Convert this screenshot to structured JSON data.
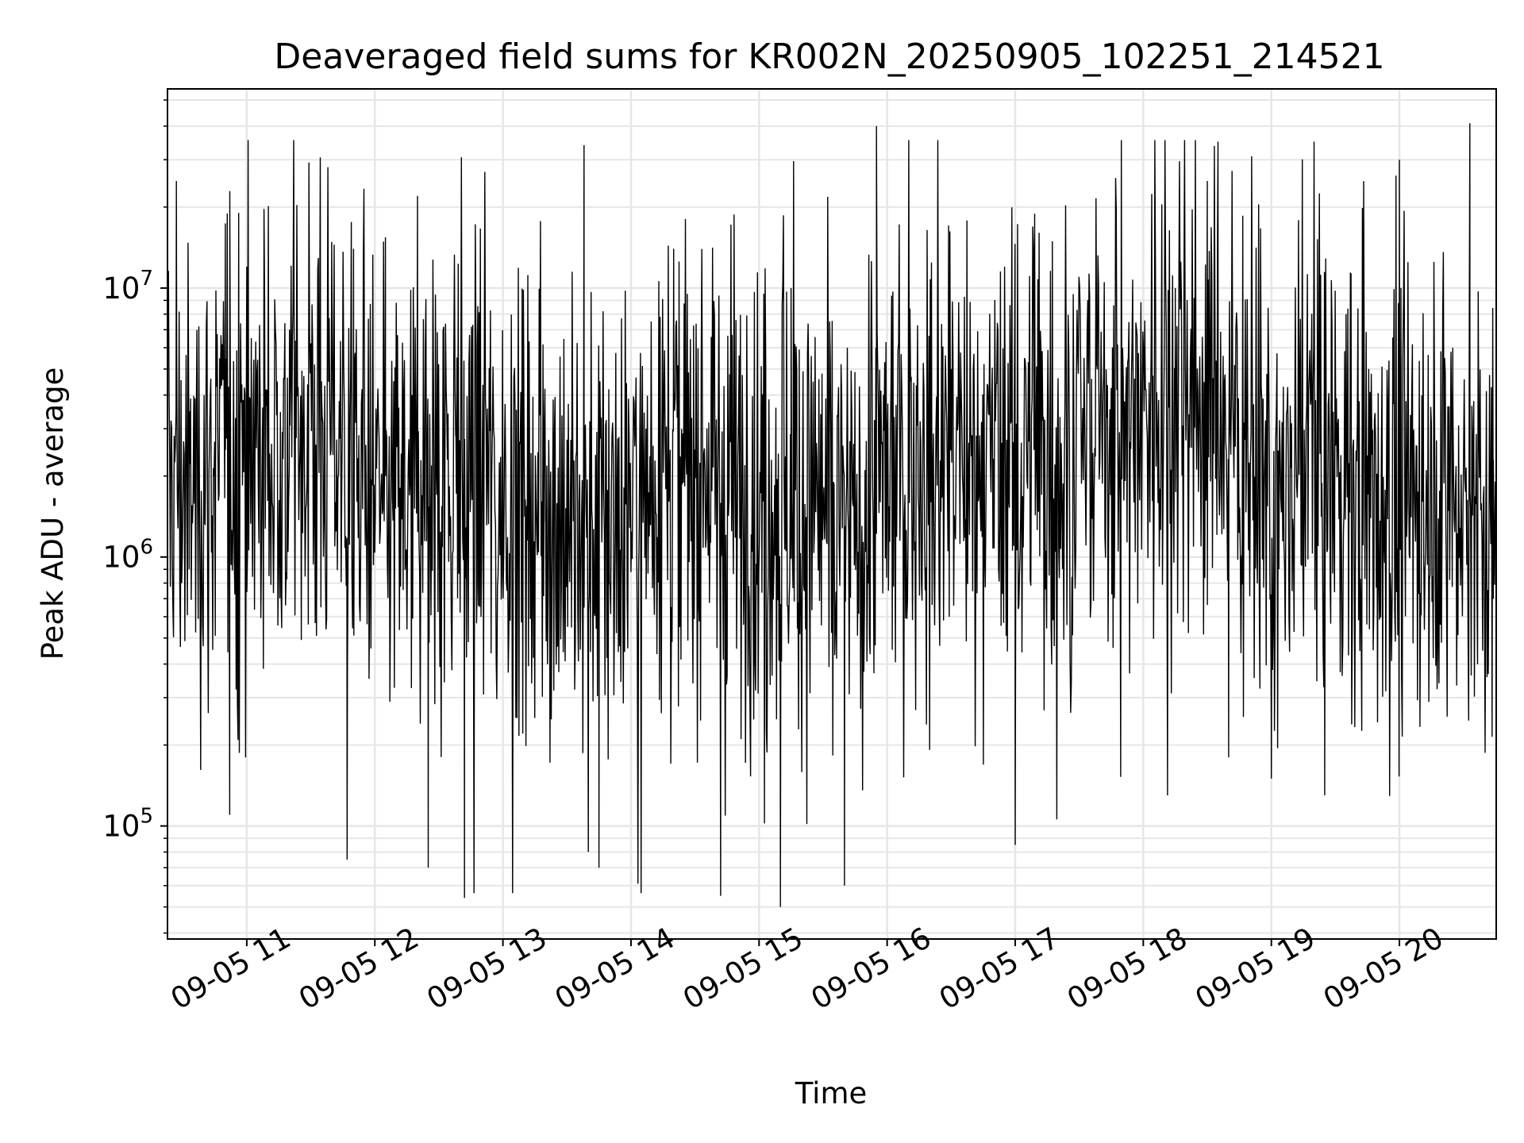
{
  "chart_data": {
    "type": "line",
    "title": "Deaveraged field sums for KR002N_20250905_102251_214521",
    "xlabel": "Time",
    "ylabel": "Peak ADU - average",
    "yscale": "log",
    "ylim": [
      38000,
      55000000
    ],
    "xlim": [
      "2025-09-05 10:22:51",
      "2025-09-05 20:45:21"
    ],
    "grid": true,
    "x_ticks": [
      "09-05 11",
      "09-05 12",
      "09-05 13",
      "09-05 14",
      "09-05 15",
      "09-05 16",
      "09-05 17",
      "09-05 18",
      "09-05 19",
      "09-05 20"
    ],
    "y_ticks": [
      {
        "value": 100000,
        "base": "10",
        "exp": "5"
      },
      {
        "value": 1000000,
        "base": "10",
        "exp": "6"
      },
      {
        "value": 10000000,
        "base": "10",
        "exp": "7"
      }
    ],
    "line_color": "#000000",
    "series": [
      {
        "x": [
          "2025-09-05 10:25",
          "2025-09-05 10:27",
          "2025-09-05 10:33",
          "2025-09-05 10:40",
          "2025-09-05 10:50",
          "2025-09-05 10:52",
          "2025-09-05 11:00",
          "2025-09-05 11:20",
          "2025-09-05 11:35",
          "2025-09-05 11:47",
          "2025-09-05 11:50",
          "2025-09-05 12:05",
          "2025-09-05 12:20",
          "2025-09-05 12:25",
          "2025-09-05 12:38",
          "2025-09-05 12:42",
          "2025-09-05 12:48",
          "2025-09-05 13:20",
          "2025-09-05 13:38",
          "2025-09-05 13:40",
          "2025-09-05 13:45",
          "2025-09-05 14:07",
          "2025-09-05 14:20",
          "2025-09-05 14:42",
          "2025-09-05 15:10",
          "2025-09-05 15:15",
          "2025-09-05 15:40",
          "2025-09-05 15:45",
          "2025-09-05 15:55",
          "2025-09-05 16:10",
          "2025-09-05 16:30",
          "2025-09-05 16:55",
          "2025-09-05 17:00",
          "2025-09-05 17:40",
          "2025-09-05 18:15",
          "2025-09-05 18:30",
          "2025-09-05 18:35",
          "2025-09-05 18:40",
          "2025-09-05 19:00",
          "2025-09-05 19:20",
          "2025-09-05 19:25",
          "2025-09-05 19:35",
          "2025-09-05 20:00",
          "2025-09-05 20:25",
          "2025-09-05 20:33",
          "2025-09-05 20:44"
        ],
        "y": [
          1800000,
          25000000,
          900000,
          4000000,
          2500000,
          110000,
          12000000,
          7000000,
          4500000,
          75000,
          14000000,
          2000000,
          22000000,
          70000,
          3000000,
          54000,
          6000000,
          1500000,
          34000000,
          80000,
          70000,
          3000000,
          14000000,
          55000,
          50000,
          10000000,
          60000,
          2000000,
          40000000,
          8000000,
          5000000,
          12000000,
          85000,
          4000000,
          10000000,
          25000000,
          35000000,
          180000,
          150000,
          35000000,
          130000,
          8000000,
          30000000,
          6000000,
          41000000,
          700000
        ]
      }
    ]
  }
}
